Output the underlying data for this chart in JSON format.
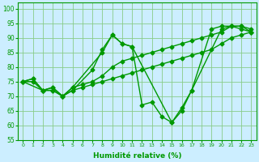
{
  "xlabel": "Humidité relative (%)",
  "background_color": "#cceeff",
  "grid_color": "#88cc88",
  "line_color": "#009900",
  "marker": "D",
  "markersize": 2.5,
  "linewidth": 1.0,
  "ylim": [
    55,
    102
  ],
  "xlim": [
    -0.5,
    23.5
  ],
  "yticks": [
    55,
    60,
    65,
    70,
    75,
    80,
    85,
    90,
    95,
    100
  ],
  "xticks": [
    0,
    1,
    2,
    3,
    4,
    5,
    6,
    7,
    8,
    9,
    10,
    11,
    12,
    13,
    14,
    15,
    16,
    17,
    18,
    19,
    20,
    21,
    22,
    23
  ],
  "series": [
    {
      "x": [
        0,
        1,
        2,
        3,
        4,
        5,
        8,
        9,
        10,
        11,
        15,
        16,
        17,
        20,
        21,
        22,
        23
      ],
      "y": [
        75,
        76,
        72,
        73,
        70,
        73,
        85,
        91,
        88,
        87,
        61,
        66,
        72,
        93,
        94,
        94,
        92
      ]
    },
    {
      "x": [
        0,
        1,
        2,
        3,
        4,
        5,
        6,
        7,
        8,
        9,
        10,
        11,
        12,
        13,
        14,
        15,
        16,
        17,
        18,
        19,
        20,
        21,
        22,
        23
      ],
      "y": [
        75,
        76,
        72,
        73,
        70,
        73,
        74,
        75,
        77,
        80,
        82,
        83,
        84,
        85,
        86,
        87,
        88,
        89,
        90,
        91,
        92,
        94,
        94,
        93
      ]
    },
    {
      "x": [
        0,
        1,
        2,
        3,
        4,
        5,
        6,
        7,
        8,
        9,
        10,
        11,
        12,
        13,
        14,
        15,
        16,
        17,
        18,
        19,
        20,
        21,
        22,
        23
      ],
      "y": [
        75,
        75,
        72,
        72,
        70,
        72,
        73,
        74,
        75,
        76,
        77,
        78,
        79,
        80,
        81,
        82,
        83,
        84,
        85,
        86,
        88,
        90,
        91,
        92
      ]
    },
    {
      "x": [
        0,
        2,
        3,
        4,
        5,
        7,
        8,
        9,
        10,
        11,
        12,
        13,
        14,
        15,
        16,
        17,
        19,
        20,
        21,
        22,
        23
      ],
      "y": [
        75,
        72,
        72,
        70,
        72,
        79,
        86,
        91,
        88,
        87,
        67,
        68,
        63,
        61,
        65,
        72,
        93,
        94,
        94,
        93,
        92
      ]
    }
  ]
}
